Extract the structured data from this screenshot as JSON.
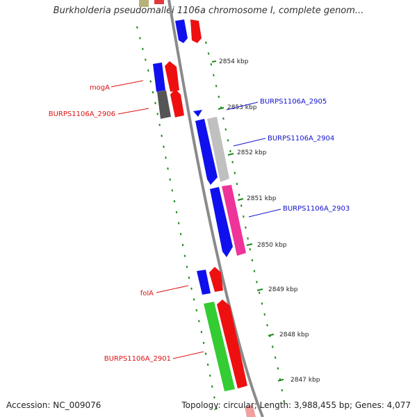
{
  "title": "Burkholderia pseudomallei 1106a chromosome I, complete genom...",
  "ticks": [
    "2854 kbp",
    "2853 kbp",
    "2852 kbp",
    "2851 kbp",
    "2850 kbp",
    "2849 kbp",
    "2848 kbp",
    "2847 kbp"
  ],
  "labels": {
    "mogA": "mogA",
    "b2906": "BURPS1106A_2906",
    "folA": "folA",
    "b2901": "BURPS1106A_2901",
    "b2905": "BURPS1106A_2905",
    "b2904": "BURPS1106A_2904",
    "b2903": "BURPS1106A_2903"
  },
  "footer": {
    "accession": "Accession: NC_009076",
    "topology": "Topology: circular; Length: 3,988,455 bp; Genes: 4,077"
  },
  "colors": {
    "forward_strand": "#ee1010",
    "reverse_strand": "#1010ee",
    "backbone": "#8a8a8a",
    "ring": "#1a8a1a"
  }
}
